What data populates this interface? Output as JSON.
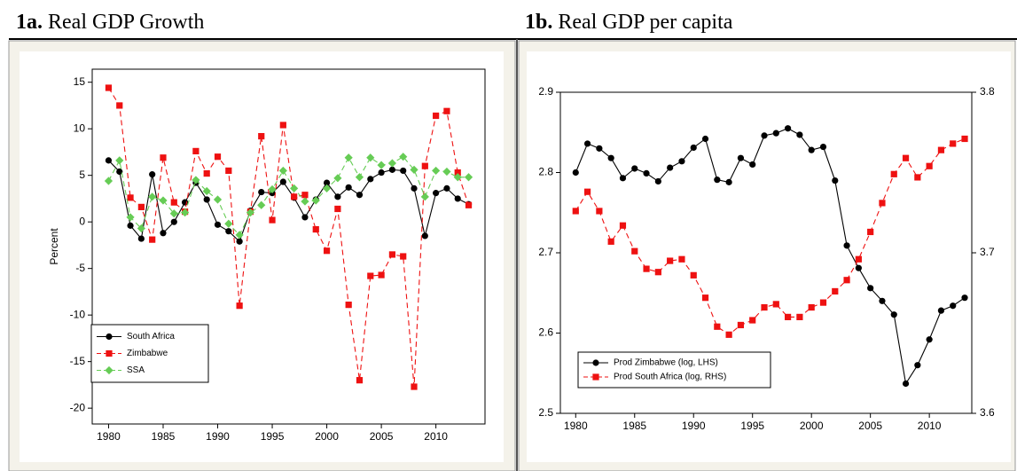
{
  "chart_data": [
    {
      "type": "line",
      "panel_label": "1a.",
      "title": "Real GDP Growth",
      "y_label": "Percent",
      "x": [
        1980,
        1981,
        1982,
        1983,
        1984,
        1985,
        1986,
        1987,
        1988,
        1989,
        1990,
        1991,
        1992,
        1993,
        1994,
        1995,
        1996,
        1997,
        1998,
        1999,
        2000,
        2001,
        2002,
        2003,
        2004,
        2005,
        2006,
        2007,
        2008,
        2009,
        2010,
        2011,
        2012,
        2013
      ],
      "series": [
        {
          "name": "South Africa",
          "color": "#000000",
          "marker": "circle",
          "line_style": "solid",
          "values": [
            6.6,
            5.4,
            -0.4,
            -1.8,
            5.1,
            -1.2,
            0.0,
            2.1,
            4.2,
            2.4,
            -0.3,
            -1.0,
            -2.1,
            1.2,
            3.2,
            3.1,
            4.3,
            2.6,
            0.5,
            2.4,
            4.2,
            2.7,
            3.7,
            2.9,
            4.6,
            5.3,
            5.6,
            5.5,
            3.6,
            -1.5,
            3.1,
            3.6,
            2.5,
            1.9
          ]
        },
        {
          "name": "Zimbabwe",
          "color": "#ee1111",
          "marker": "square",
          "line_style": "dashed",
          "values": [
            14.4,
            12.5,
            2.6,
            1.6,
            -1.9,
            6.9,
            2.1,
            1.1,
            7.6,
            5.2,
            7.0,
            5.5,
            -9.0,
            1.1,
            9.2,
            0.2,
            10.4,
            2.7,
            2.9,
            -0.8,
            -3.1,
            1.4,
            -8.9,
            -17.0,
            -5.8,
            -5.7,
            -3.5,
            -3.7,
            -17.7,
            6.0,
            11.4,
            11.9,
            5.3,
            1.8
          ]
        },
        {
          "name": "SSA",
          "color": "#66cc55",
          "marker": "diamond",
          "line_style": "dashed",
          "values": [
            4.4,
            6.6,
            0.5,
            -0.7,
            2.7,
            2.3,
            0.9,
            1.0,
            4.5,
            3.3,
            2.4,
            -0.2,
            -1.4,
            1.0,
            1.8,
            3.5,
            5.5,
            3.6,
            2.2,
            2.3,
            3.6,
            4.7,
            6.9,
            4.8,
            6.9,
            6.1,
            6.3,
            7.0,
            5.6,
            2.7,
            5.5,
            5.4,
            4.8,
            4.8
          ]
        }
      ],
      "xlim": [
        1978.5,
        2014.5
      ],
      "xticks": [
        1980,
        1985,
        1990,
        1995,
        2000,
        2005,
        2010
      ],
      "ylim": [
        -21.7,
        16.4
      ],
      "yticks": [
        -20,
        -15,
        -10,
        -5,
        0,
        5,
        10,
        15
      ],
      "legend": "lower left"
    },
    {
      "type": "line",
      "panel_label": "1b.",
      "title": "Real GDP per capita",
      "x": [
        1980,
        1981,
        1982,
        1983,
        1984,
        1985,
        1986,
        1987,
        1988,
        1989,
        1990,
        1991,
        1992,
        1993,
        1994,
        1995,
        1996,
        1997,
        1998,
        1999,
        2000,
        2001,
        2002,
        2003,
        2004,
        2005,
        2006,
        2007,
        2008,
        2009,
        2010,
        2011,
        2012,
        2013
      ],
      "series": [
        {
          "name": "Prod Zimbabwe (log, LHS)",
          "color": "#000000",
          "marker": "circle",
          "line_style": "solid",
          "axis": "y",
          "values": [
            2.8,
            2.836,
            2.83,
            2.818,
            2.793,
            2.805,
            2.799,
            2.789,
            2.806,
            2.814,
            2.831,
            2.842,
            2.791,
            2.788,
            2.818,
            2.81,
            2.846,
            2.849,
            2.855,
            2.847,
            2.828,
            2.832,
            2.79,
            2.709,
            2.681,
            2.656,
            2.64,
            2.623,
            2.537,
            2.56,
            2.592,
            2.628,
            2.634,
            2.644
          ]
        },
        {
          "name": "Prod South Africa (log, RHS)",
          "color": "#ee1111",
          "marker": "square",
          "line_style": "dashed",
          "axis": "y2",
          "values": [
            3.726,
            3.738,
            3.726,
            3.707,
            3.717,
            3.701,
            3.69,
            3.688,
            3.695,
            3.696,
            3.686,
            3.672,
            3.654,
            3.649,
            3.655,
            3.658,
            3.666,
            3.668,
            3.66,
            3.66,
            3.666,
            3.669,
            3.676,
            3.683,
            3.696,
            3.713,
            3.731,
            3.749,
            3.759,
            3.747,
            3.754,
            3.764,
            3.768,
            3.771
          ]
        }
      ],
      "xlim": [
        1978.7,
        2013.6
      ],
      "xticks": [
        1980,
        1985,
        1990,
        1995,
        2000,
        2005,
        2010
      ],
      "ylim": [
        2.5,
        2.9
      ],
      "yticks": [
        2.5,
        2.6,
        2.7,
        2.8,
        2.9
      ],
      "y2lim": [
        3.6,
        3.8
      ],
      "y2ticks": [
        3.6,
        3.7,
        3.8
      ],
      "legend": "lower left"
    }
  ]
}
